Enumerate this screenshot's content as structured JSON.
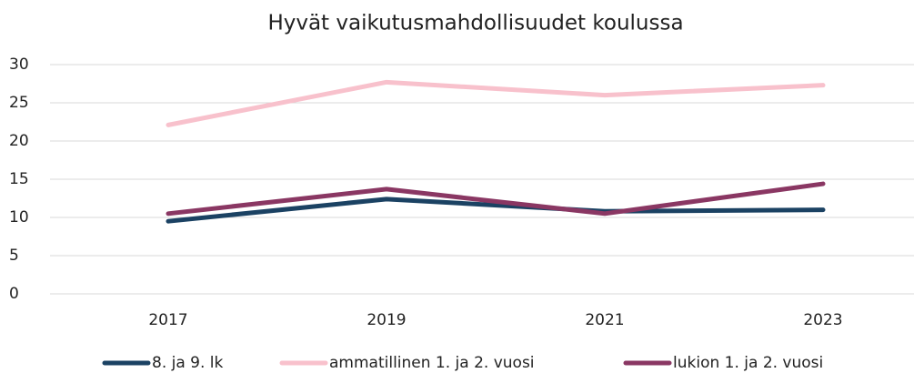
{
  "chart_data": {
    "type": "line",
    "title": "Hyvät vaikutusmahdollisuudet koulussa",
    "categories": [
      "2017",
      "2019",
      "2021",
      "2023"
    ],
    "series": [
      {
        "name": "8. ja 9. lk",
        "color": "#1b4263",
        "values": [
          9.5,
          12.4,
          10.8,
          11.0
        ]
      },
      {
        "name": "ammatillinen 1. ja 2. vuosi",
        "color": "#f8c1cc",
        "values": [
          22.1,
          27.7,
          26.0,
          27.3
        ]
      },
      {
        "name": "lukion 1. ja 2. vuosi",
        "color": "#8a3763",
        "values": [
          10.5,
          13.7,
          10.5,
          14.4
        ]
      }
    ],
    "ylim": [
      0,
      30
    ],
    "yticks": [
      0,
      5,
      10,
      15,
      20,
      25,
      30
    ],
    "grid": true,
    "legend": "bottom"
  }
}
